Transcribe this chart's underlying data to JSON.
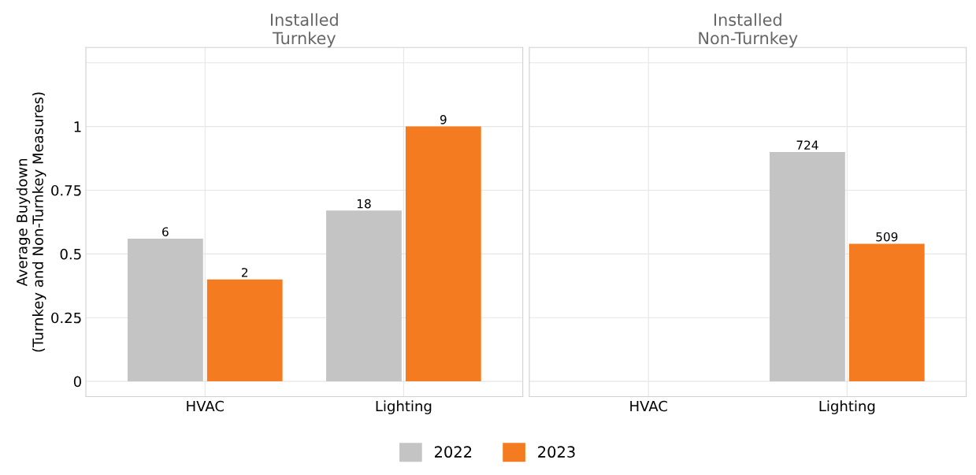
{
  "chart_data": [
    {
      "type": "bar",
      "title": "Installed\nTurnkey",
      "ylabel": "Average Buydown\n(Turnkey and Non-Turnkey Measures)",
      "categories": [
        "HVAC",
        "Lighting"
      ],
      "series": [
        {
          "name": "2022",
          "color": "#c4c4c4",
          "values": [
            0.56,
            0.67
          ]
        },
        {
          "name": "2023",
          "color": "#f47b20",
          "values": [
            0.4,
            1.0
          ]
        }
      ],
      "annotations": [
        {
          "text": "6",
          "y": 0.56
        },
        {
          "text": "18",
          "y": 0.67
        },
        {
          "text": "2",
          "y": 0.4
        },
        {
          "text": "9",
          "y": 1.0
        }
      ],
      "ylim": [
        -0.06,
        1.31
      ],
      "yticks": [
        0,
        0.25,
        0.5,
        0.75,
        1,
        {
          "value": 1.25,
          "label": null
        }
      ],
      "grid": true,
      "legend": "bottom"
    },
    {
      "type": "bar",
      "title": "Installed\nNon-Turnkey",
      "categories": [
        "HVAC",
        "Lighting"
      ],
      "series": [
        {
          "name": "2022",
          "color": "#c4c4c4",
          "values": [
            null,
            0.9
          ]
        },
        {
          "name": "2023",
          "color": "#f47b20",
          "values": [
            null,
            0.54
          ]
        }
      ],
      "annotations": [
        {
          "text": "724",
          "y": 0.9
        },
        {
          "text": "509",
          "y": 0.54
        }
      ],
      "ylim": [
        -0.06,
        1.31
      ],
      "yticks": [
        0,
        0.25,
        0.5,
        0.75,
        1,
        {
          "value": 1.25,
          "label": null
        }
      ],
      "grid": true,
      "tick_labels": "x",
      "legend": "bottom"
    }
  ]
}
